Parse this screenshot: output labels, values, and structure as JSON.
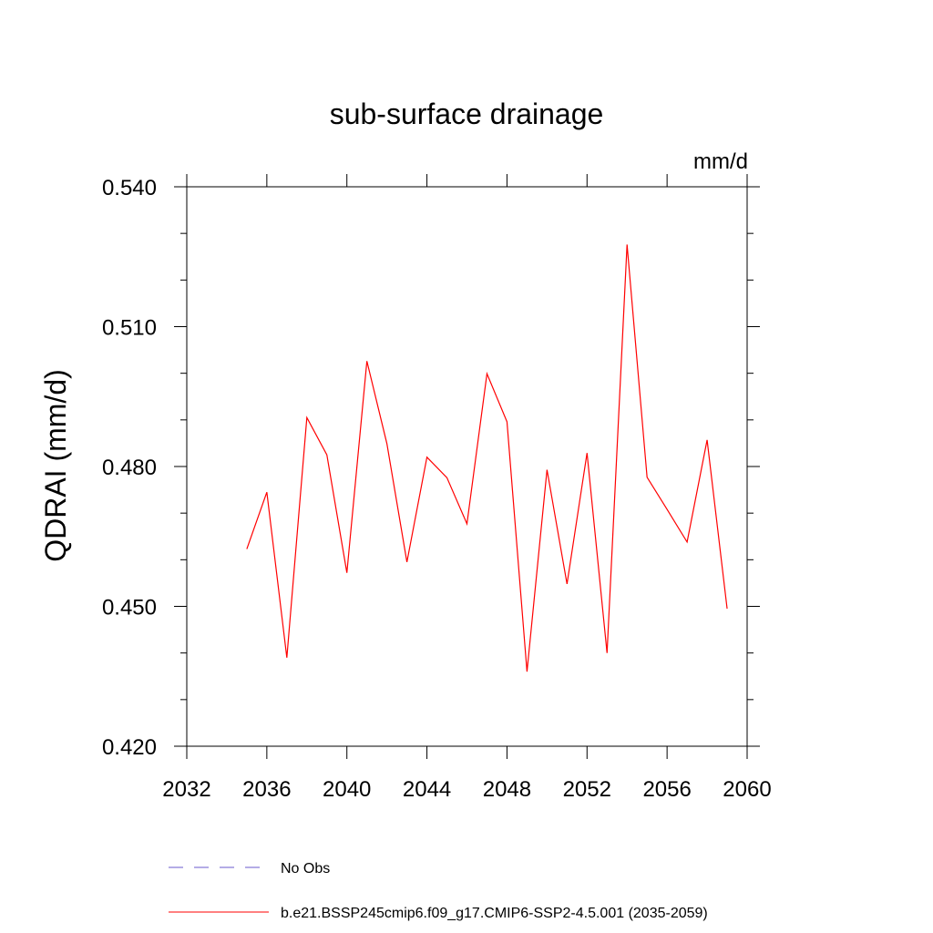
{
  "chart_data": {
    "type": "line",
    "title": "sub-surface drainage",
    "units": "mm/d",
    "ylabel": "QDRAI  (mm/d)",
    "xlim": [
      2032,
      2060
    ],
    "ylim": [
      0.42,
      0.54
    ],
    "x_ticks": [
      2032,
      2036,
      2040,
      2044,
      2048,
      2052,
      2056,
      2060
    ],
    "y_ticks": [
      "0.420",
      "0.450",
      "0.480",
      "0.510",
      "0.540"
    ],
    "x": [
      2035,
      2036,
      2037,
      2038,
      2039,
      2040,
      2041,
      2042,
      2043,
      2044,
      2045,
      2046,
      2047,
      2048,
      2049,
      2050,
      2051,
      2052,
      2053,
      2054,
      2055,
      2056,
      2057,
      2058,
      2059
    ],
    "series": [
      {
        "name": "b.e21.BSSP245cmip6.f09_g17.CMIP6-SSP2-4.5.001 (2035-2059)",
        "color": "#ff0000",
        "values": [
          0.4623,
          0.4745,
          0.439,
          0.4905,
          0.4825,
          0.4572,
          0.5026,
          0.4849,
          0.4595,
          0.482,
          0.4776,
          0.4677,
          0.4999,
          0.4896,
          0.436,
          0.4793,
          0.4548,
          0.4829,
          0.44,
          0.5276,
          0.4777,
          0.4708,
          0.4638,
          0.4857,
          0.4495
        ]
      }
    ],
    "legend": {
      "placement": "bottom",
      "entries": [
        {
          "label": "No Obs",
          "color": "#6a5acd",
          "style": "dashed"
        },
        {
          "label": "b.e21.BSSP245cmip6.f09_g17.CMIP6-SSP2-4.5.001 (2035-2059)",
          "color": "#ff0000",
          "style": "solid"
        }
      ]
    }
  }
}
